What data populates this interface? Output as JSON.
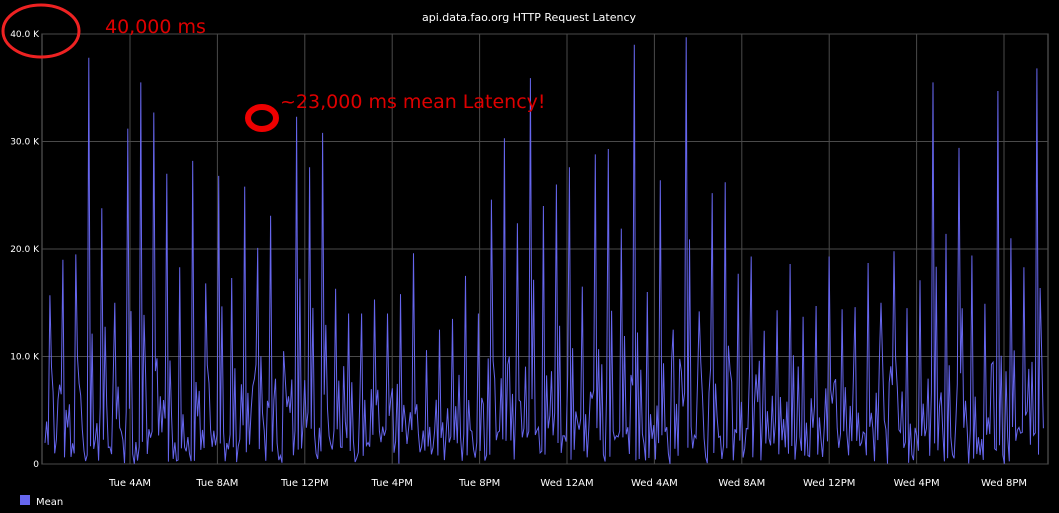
{
  "chart_data": {
    "type": "line",
    "title": "api.data.fao.org HTTP Request Latency",
    "xlabel": "",
    "ylabel": "",
    "ylim": [
      0,
      40000
    ],
    "y_ticks": [
      0,
      10000,
      20000,
      30000,
      40000
    ],
    "y_tick_labels": [
      "0",
      "10.0 K",
      "20.0 K",
      "30.0 K",
      "40.0 K"
    ],
    "x_tick_labels": [
      "Tue  4AM",
      "Tue  8AM",
      "Tue 12PM",
      "Tue  4PM",
      "Tue  8PM",
      "Wed 12AM",
      "Wed  4AM",
      "Wed  8AM",
      "Wed 12PM",
      "Wed  4PM",
      "Wed  8PM"
    ],
    "grid": true,
    "legend_position": "bottom-left",
    "series": [
      {
        "name": "Mean",
        "color": "#6666ee",
        "peaks": [
          15700,
          19000,
          19500,
          37800,
          23800,
          15000,
          31200,
          35500,
          32700,
          27000,
          18300,
          28200,
          16800,
          26800,
          17300,
          25800,
          20100,
          23100,
          10500,
          32300,
          27600,
          30800,
          16300,
          14000,
          14000,
          15300,
          14000,
          15800,
          19600,
          10600,
          12500,
          13500,
          17500,
          14000,
          24600,
          30300,
          22400,
          35900,
          24000,
          26000,
          27600,
          16500,
          28800,
          29300,
          21900,
          39000,
          16000,
          26400,
          12500,
          39700,
          14200,
          25200,
          26200,
          17700,
          19300,
          12400,
          14300,
          18600,
          13700,
          14700,
          19300,
          14400,
          14600,
          18700,
          15000,
          19800,
          14500,
          17100,
          35500,
          21400,
          29400,
          19400,
          14900,
          34700,
          21000,
          18300,
          36800
        ]
      }
    ]
  },
  "annotations": {
    "top_label": "40,000 ms",
    "peak_label": "~23,000 ms  mean Latency!",
    "color": "#dd0000"
  }
}
